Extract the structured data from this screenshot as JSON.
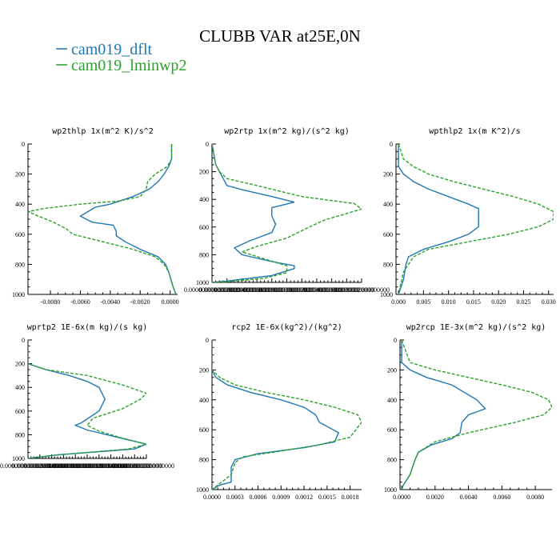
{
  "figure": {
    "title": "CLUBB VAR at25E,0N",
    "legend": [
      {
        "name": "cam019_dflt",
        "color": "#1f77b4"
      },
      {
        "name": "cam019_lminwp2",
        "color": "#2ca02c"
      }
    ]
  },
  "chart_data": [
    {
      "type": "line",
      "title": "wp2thlp  1x(m^2 K)/s^2",
      "xlim": [
        -0.0095,
        0.0005
      ],
      "xticks": [
        -0.008,
        -0.006,
        -0.004,
        -0.002,
        0.0
      ],
      "xtick_labels": [
        "-0.0080",
        "-0.0060",
        "-0.0040",
        "-0.0020",
        "0.0000"
      ],
      "ylim": [
        1000,
        0
      ],
      "yticks": [
        0,
        200,
        400,
        600,
        800,
        1000
      ],
      "ytick_labels": [
        "0",
        "200",
        "400",
        "600",
        "800",
        "1000"
      ],
      "series": [
        {
          "name": "cam019_dflt",
          "color": "#1f77b4",
          "dashed": false,
          "x": [
            0.0001,
            0.0001,
            -0.0001,
            -0.0004,
            -0.0008,
            -0.0014,
            -0.0025,
            -0.004,
            -0.005,
            -0.0055,
            -0.006,
            -0.0052,
            -0.0038,
            -0.0036,
            -0.0036,
            -0.003,
            -0.002,
            -0.0008,
            -0.0003,
            -0.0001,
            0.0002,
            0.0004
          ],
          "y": [
            0,
            100,
            150,
            200,
            250,
            300,
            350,
            400,
            420,
            450,
            480,
            520,
            540,
            580,
            610,
            650,
            700,
            750,
            800,
            850,
            950,
            1000
          ]
        },
        {
          "name": "cam019_lminwp2",
          "color": "#2ca02c",
          "dashed": true,
          "x": [
            0.0001,
            0.0001,
            -0.0002,
            -0.001,
            -0.0015,
            -0.0016,
            -0.002,
            -0.0035,
            -0.006,
            -0.0085,
            -0.0095,
            -0.0088,
            -0.0078,
            -0.007,
            -0.0065,
            -0.0045,
            -0.0025,
            -0.001,
            -0.0004,
            -0.0001,
            0.0002,
            0.0004
          ],
          "y": [
            0,
            100,
            150,
            200,
            250,
            300,
            350,
            380,
            400,
            430,
            450,
            480,
            520,
            560,
            600,
            650,
            700,
            750,
            800,
            850,
            950,
            1000
          ]
        }
      ]
    },
    {
      "type": "line",
      "title": "wp2rtp  1x(m^2 kg)/(s^2 kg)",
      "xlim": [
        0.0,
        2e-07
      ],
      "xticks": [
        0.0,
        2e-08,
        4e-08,
        6e-08,
        8e-08,
        1e-07,
        1.2e-07,
        1.4e-07,
        1.6e-07,
        1.8e-07,
        2e-07
      ],
      "xtick_labels": [
        "0.0000000000000000",
        "0.0000000200000000",
        "0.0000000400000000",
        "0.0000000600000000",
        "0.0000000800000000",
        "0.0000001000000000",
        "0.0000001200000000",
        "0.0000001400000000",
        "0.0000001600000000",
        "0.0000001800000000",
        "0.0000002000000000"
      ],
      "ylim": [
        1000,
        0
      ],
      "yticks": [
        0,
        200,
        400,
        600,
        800,
        1000
      ],
      "ytick_labels": [
        "0",
        "200",
        "400",
        "600",
        "800",
        "1000"
      ],
      "series": [
        {
          "name": "cam019_dflt",
          "color": "#1f77b4",
          "dashed": false,
          "x": [
            0.0,
            5e-09,
            1.5e-08,
            2e-08,
            4e-08,
            8e-08,
            1.1e-07,
            8e-08,
            8e-08,
            8.5e-08,
            8e-08,
            5e-08,
            3e-08,
            4e-08,
            8e-08,
            1.1e-07,
            1.1e-07,
            8e-08,
            2e-08,
            0.0
          ],
          "y": [
            0,
            150,
            250,
            300,
            330,
            380,
            420,
            460,
            520,
            580,
            640,
            700,
            750,
            800,
            850,
            880,
            900,
            950,
            990,
            1000
          ]
        },
        {
          "name": "cam019_lminwp2",
          "color": "#2ca02c",
          "dashed": true,
          "x": [
            0.0,
            5e-09,
            1e-08,
            2e-08,
            6e-08,
            1.2e-07,
            1.9e-07,
            2e-07,
            1.5e-07,
            1.3e-07,
            1e-07,
            6e-08,
            4e-08,
            7e-08,
            1e-07,
            1e-07,
            7e-08,
            2e-08,
            0.0
          ],
          "y": [
            0,
            150,
            200,
            250,
            300,
            380,
            430,
            470,
            550,
            600,
            680,
            740,
            780,
            830,
            880,
            930,
            970,
            995,
            1000
          ]
        }
      ]
    },
    {
      "type": "line",
      "title": "wpthlp2  1x(m K^2)/s",
      "xlim": [
        -0.0005,
        0.031
      ],
      "xticks": [
        0.0,
        0.005,
        0.01,
        0.015,
        0.02,
        0.025,
        0.03
      ],
      "xtick_labels": [
        "0.000",
        "0.005",
        "0.010",
        "0.015",
        "0.020",
        "0.025",
        "0.030"
      ],
      "ylim": [
        1000,
        0
      ],
      "yticks": [
        0,
        200,
        400,
        600,
        800,
        1000
      ],
      "ytick_labels": [
        "0",
        "200",
        "400",
        "600",
        "800",
        "1000"
      ],
      "series": [
        {
          "name": "cam019_dflt",
          "color": "#1f77b4",
          "dashed": false,
          "x": [
            0.0,
            0.0,
            0.001,
            0.003,
            0.006,
            0.01,
            0.014,
            0.016,
            0.016,
            0.014,
            0.01,
            0.005,
            0.002,
            0.0015,
            0.001,
            0.0
          ],
          "y": [
            0,
            150,
            200,
            250,
            300,
            350,
            400,
            430,
            550,
            600,
            650,
            700,
            750,
            800,
            900,
            1000
          ]
        },
        {
          "name": "cam019_lminwp2",
          "color": "#2ca02c",
          "dashed": true,
          "x": [
            0.0,
            0.001,
            0.003,
            0.006,
            0.011,
            0.017,
            0.023,
            0.028,
            0.031,
            0.031,
            0.028,
            0.022,
            0.014,
            0.006,
            0.003,
            0.001,
            0.0
          ],
          "y": [
            0,
            100,
            150,
            200,
            250,
            300,
            350,
            400,
            450,
            500,
            550,
            600,
            650,
            700,
            750,
            850,
            1000
          ]
        }
      ]
    },
    {
      "type": "line",
      "title": "wprtp2  1E-6x(m kg)/(s kg)",
      "xlim": [
        0.0,
        2e-07
      ],
      "xticks": [
        0.0,
        2e-08,
        4e-08,
        6e-08,
        8e-08,
        1e-07,
        1.2e-07,
        1.4e-07,
        1.6e-07,
        1.8e-07,
        2e-07
      ],
      "xtick_labels": [
        "0.0000000000000000",
        "0.0000000200000000",
        "0.0000000400000000",
        "0.0000000600000000",
        "0.0000000800000000",
        "0.0000001000000000",
        "0.0000001200000000",
        "0.0000001400000000",
        "0.0000001600000000",
        "0.0000001800000000",
        "0.0000002000000000"
      ],
      "ylim": [
        1000,
        0
      ],
      "yticks": [
        0,
        200,
        400,
        600,
        800,
        1000
      ],
      "ytick_labels": [
        "0",
        "200",
        "400",
        "600",
        "800",
        "1000"
      ],
      "series": [
        {
          "name": "cam019_dflt",
          "color": "#1f77b4",
          "dashed": false,
          "x": [
            0.0,
            0.0,
            3e-08,
            7e-08,
            1e-07,
            1.2e-07,
            1.3e-07,
            1.2e-07,
            9e-08,
            8e-08,
            1e-07,
            1.5e-07,
            2e-07,
            1.8e-07,
            5e-08,
            0.0
          ],
          "y": [
            0,
            200,
            250,
            300,
            350,
            400,
            500,
            600,
            700,
            720,
            760,
            820,
            880,
            920,
            970,
            1000
          ]
        },
        {
          "name": "cam019_lminwp2",
          "color": "#2ca02c",
          "dashed": true,
          "x": [
            0.0,
            0.0,
            3e-08,
            1e-07,
            1.6e-07,
            2e-07,
            1.9e-07,
            1.6e-07,
            1.1e-07,
            1e-07,
            1.2e-07,
            1.6e-07,
            2e-07,
            1.7e-07,
            5e-08,
            0.0
          ],
          "y": [
            0,
            200,
            250,
            300,
            380,
            450,
            500,
            580,
            660,
            720,
            770,
            830,
            880,
            920,
            970,
            1000
          ]
        }
      ]
    },
    {
      "type": "line",
      "title": "rcp2  1E-6x(kg^2)/(kg^2)",
      "xlim": [
        0.0,
        0.00195
      ],
      "xticks": [
        0.0,
        0.0003,
        0.0006,
        0.0009,
        0.0012,
        0.0015,
        0.0018
      ],
      "xtick_labels": [
        "0.0000",
        "0.0003",
        "0.0006",
        "0.0009",
        "0.0012",
        "0.0015",
        "0.0018"
      ],
      "ylim": [
        1000,
        0
      ],
      "yticks": [
        0,
        200,
        400,
        600,
        800,
        1000
      ],
      "ytick_labels": [
        "0",
        "200",
        "400",
        "600",
        "800",
        "1000"
      ],
      "series": [
        {
          "name": "cam019_dflt",
          "color": "#1f77b4",
          "dashed": false,
          "x": [
            0.0,
            0.0,
            5e-05,
            0.0002,
            0.0005,
            0.0009,
            0.0012,
            0.00135,
            0.0014,
            0.00165,
            0.0016,
            0.0012,
            0.0006,
            0.0003,
            0.00025,
            0.00025,
            0.0001,
            0.0
          ],
          "y": [
            0,
            200,
            250,
            300,
            350,
            400,
            450,
            500,
            550,
            620,
            680,
            720,
            760,
            800,
            850,
            950,
            970,
            1000
          ]
        },
        {
          "name": "cam019_lminwp2",
          "color": "#2ca02c",
          "dashed": true,
          "x": [
            0.0,
            0.0,
            0.0001,
            0.0003,
            0.0007,
            0.0012,
            0.0016,
            0.0019,
            0.00195,
            0.0018,
            0.0014,
            0.0008,
            0.0004,
            0.0003,
            0.00025,
            0.0001,
            0.0
          ],
          "y": [
            0,
            200,
            250,
            300,
            350,
            400,
            450,
            500,
            550,
            650,
            700,
            750,
            780,
            820,
            900,
            960,
            1000
          ]
        }
      ]
    },
    {
      "type": "line",
      "title": "wp2rcp  1E-3x(m^2 kg)/(s^2 kg)",
      "xlim": [
        -0.0001,
        0.009
      ],
      "xticks": [
        0.0,
        0.002,
        0.004,
        0.006,
        0.008
      ],
      "xtick_labels": [
        "0.0000",
        "0.0020",
        "0.0040",
        "0.0060",
        "0.0080"
      ],
      "ylim": [
        1000,
        0
      ],
      "yticks": [
        0,
        200,
        400,
        600,
        800,
        1000
      ],
      "ytick_labels": [
        "0",
        "200",
        "400",
        "600",
        "800",
        "1000"
      ],
      "series": [
        {
          "name": "cam019_dflt",
          "color": "#1f77b4",
          "dashed": false,
          "x": [
            0.0,
            0.0,
            0.0005,
            0.0015,
            0.003,
            0.0045,
            0.005,
            0.004,
            0.0036,
            0.0035,
            0.003,
            0.0018,
            0.001,
            0.0008,
            0.0005,
            0.0001,
            0.0
          ],
          "y": [
            0,
            150,
            200,
            250,
            300,
            400,
            460,
            500,
            550,
            620,
            660,
            700,
            750,
            800,
            900,
            970,
            1000
          ]
        },
        {
          "name": "cam019_lminwp2",
          "color": "#2ca02c",
          "dashed": true,
          "x": [
            0.0,
            0.0005,
            0.002,
            0.004,
            0.006,
            0.0078,
            0.0088,
            0.009,
            0.0085,
            0.0068,
            0.004,
            0.002,
            0.001,
            0.0008,
            0.0005,
            0.0001,
            0.0
          ],
          "y": [
            0,
            150,
            200,
            250,
            300,
            350,
            400,
            450,
            500,
            550,
            620,
            680,
            750,
            800,
            900,
            970,
            1000
          ]
        }
      ]
    }
  ]
}
